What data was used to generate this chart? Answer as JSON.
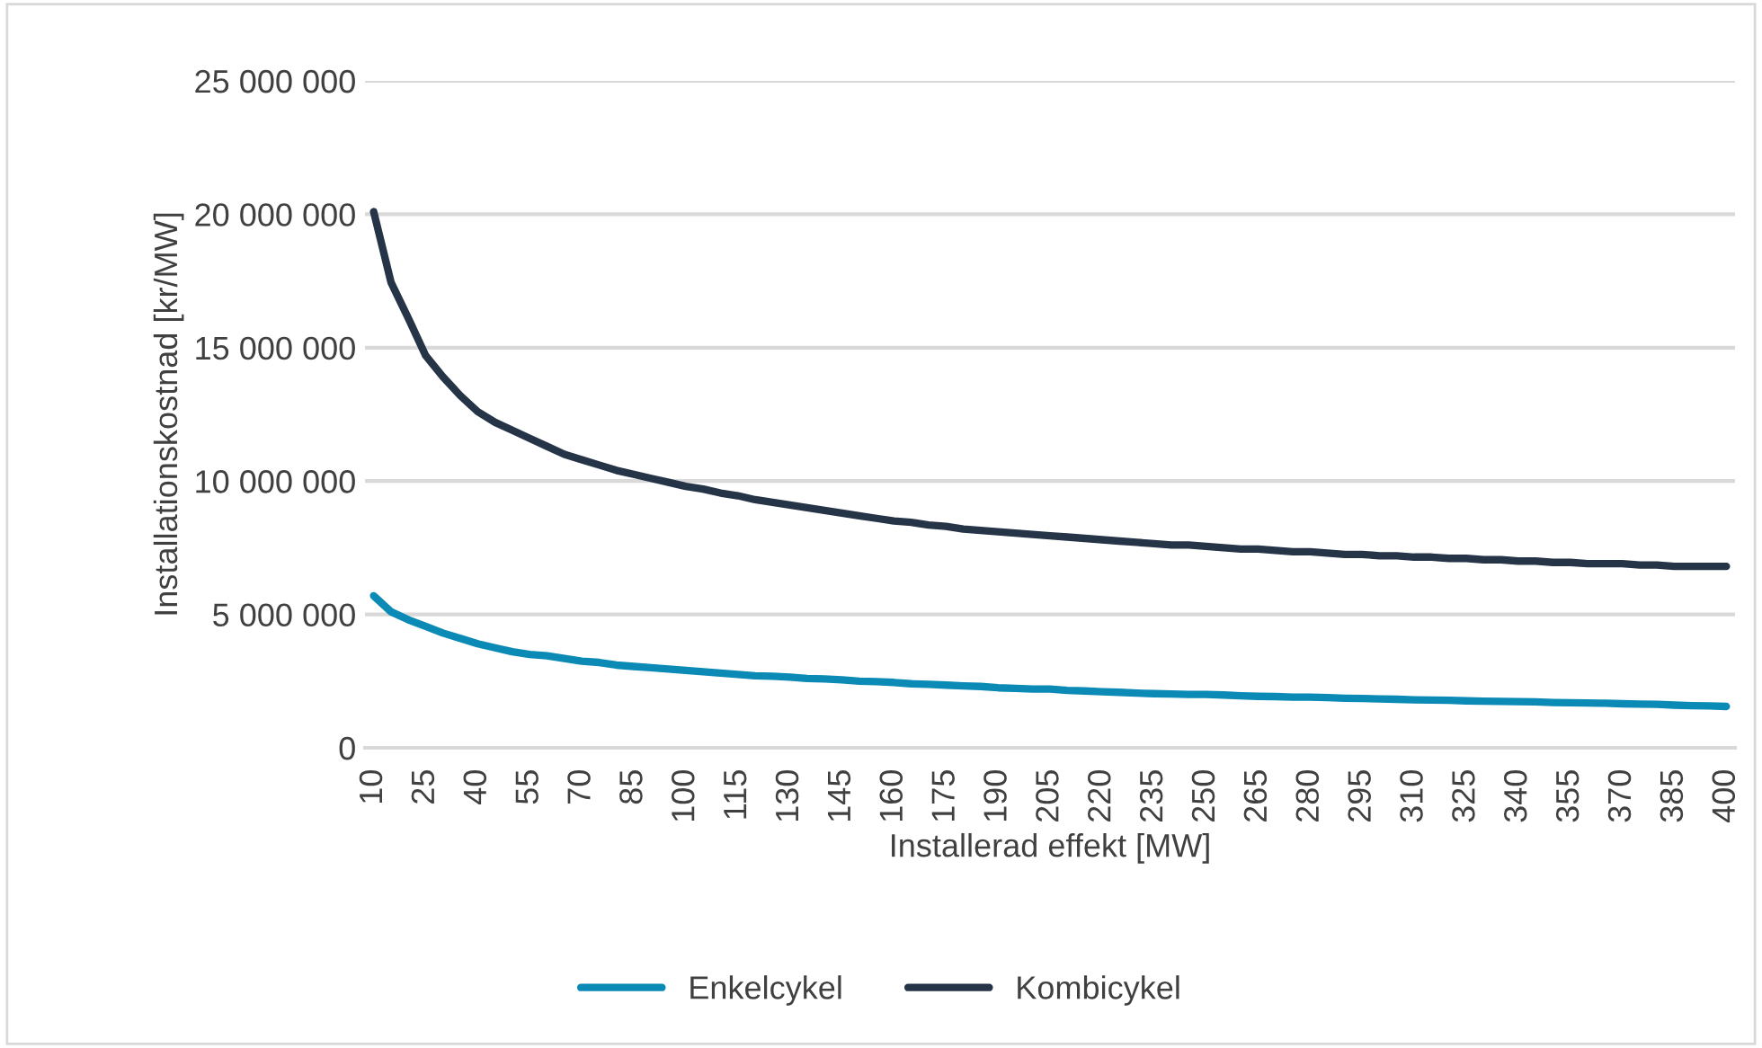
{
  "chart_data": {
    "type": "line",
    "xlabel": "Installerad effekt [MW]",
    "ylabel": "Installationskostnad [kr/MW]",
    "categories": [
      "10",
      null,
      null,
      "25",
      null,
      null,
      "40",
      null,
      null,
      "55",
      null,
      null,
      "70",
      null,
      null,
      "85",
      null,
      null,
      "100",
      null,
      null,
      "115",
      null,
      null,
      "130",
      null,
      null,
      "145",
      null,
      null,
      "160",
      null,
      null,
      "175",
      null,
      null,
      "190",
      null,
      null,
      "205",
      null,
      null,
      "220",
      null,
      null,
      "235",
      null,
      null,
      "250",
      null,
      null,
      "265",
      null,
      null,
      "280",
      null,
      null,
      "295",
      null,
      null,
      "310",
      null,
      null,
      "325",
      null,
      null,
      "340",
      null,
      null,
      "355",
      null,
      null,
      "370",
      null,
      null,
      "385",
      null,
      null,
      "400"
    ],
    "series": [
      {
        "name": "Enkelcykel",
        "color": "#0a8ab5",
        "values": [
          5700000,
          5100000,
          4800000,
          4550000,
          4300000,
          4100000,
          3900000,
          3750000,
          3600000,
          3500000,
          3450000,
          3350000,
          3250000,
          3200000,
          3100000,
          3050000,
          3000000,
          2950000,
          2900000,
          2850000,
          2800000,
          2750000,
          2700000,
          2680000,
          2650000,
          2600000,
          2580000,
          2550000,
          2500000,
          2480000,
          2450000,
          2400000,
          2380000,
          2350000,
          2320000,
          2300000,
          2250000,
          2230000,
          2200000,
          2200000,
          2150000,
          2130000,
          2100000,
          2080000,
          2050000,
          2030000,
          2020000,
          2000000,
          2000000,
          1980000,
          1950000,
          1930000,
          1920000,
          1900000,
          1900000,
          1880000,
          1860000,
          1850000,
          1830000,
          1820000,
          1800000,
          1790000,
          1780000,
          1760000,
          1750000,
          1740000,
          1730000,
          1720000,
          1700000,
          1690000,
          1680000,
          1670000,
          1650000,
          1640000,
          1630000,
          1600000,
          1580000,
          1570000,
          1550000
        ]
      },
      {
        "name": "Kombicykel",
        "color": "#263448",
        "values": [
          20100000,
          17450000,
          16100000,
          14700000,
          13900000,
          13200000,
          12600000,
          12200000,
          11900000,
          11600000,
          11300000,
          11000000,
          10800000,
          10600000,
          10400000,
          10250000,
          10100000,
          9950000,
          9800000,
          9700000,
          9550000,
          9450000,
          9300000,
          9200000,
          9100000,
          9000000,
          8900000,
          8800000,
          8700000,
          8600000,
          8500000,
          8450000,
          8350000,
          8300000,
          8200000,
          8150000,
          8100000,
          8050000,
          8000000,
          7950000,
          7900000,
          7850000,
          7800000,
          7750000,
          7700000,
          7650000,
          7600000,
          7600000,
          7550000,
          7500000,
          7450000,
          7450000,
          7400000,
          7350000,
          7350000,
          7300000,
          7250000,
          7250000,
          7200000,
          7200000,
          7150000,
          7150000,
          7100000,
          7100000,
          7050000,
          7050000,
          7000000,
          7000000,
          6950000,
          6950000,
          6900000,
          6900000,
          6900000,
          6850000,
          6850000,
          6800000,
          6800000,
          6800000,
          6800000
        ]
      }
    ],
    "ylim": [
      0,
      25000000
    ],
    "yticks": [
      {
        "value": 0,
        "label": "0"
      },
      {
        "value": 5000000,
        "label": "5 000 000"
      },
      {
        "value": 10000000,
        "label": "10 000 000"
      },
      {
        "value": 15000000,
        "label": "15 000 000"
      },
      {
        "value": 20000000,
        "label": "20 000 000"
      },
      {
        "value": 25000000,
        "label": "25 000 000"
      }
    ],
    "grid": "y",
    "legend": "bottom",
    "marker": "none",
    "line_style": "solid"
  }
}
